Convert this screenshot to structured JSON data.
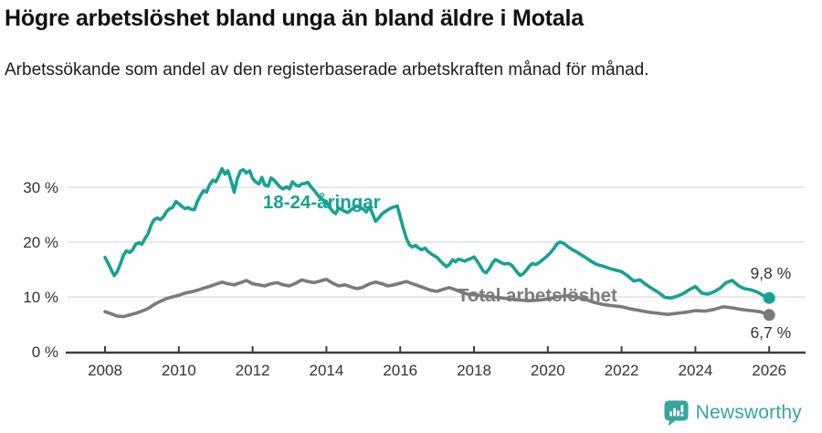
{
  "header": {
    "title": "Högre arbetslöshet bland unga än bland äldre i Motala",
    "subtitle": "Arbetssökande som andel av den registerbaserade arbetskraften månad för månad."
  },
  "colors": {
    "accent_teal": "#16a293",
    "series_gray": "#7b7b7b",
    "gridline": "#d9d9d9",
    "axis_line": "#3f3f3f",
    "axis_text": "#333333",
    "value_label_text": "#333333",
    "brand_teal": "#35a69e"
  },
  "footer": {
    "brand": "Newsworthy"
  },
  "chart_data": {
    "type": "line",
    "title": "Högre arbetslöshet bland unga än bland äldre i Motala",
    "subtitle": "Arbetssökande som andel av den registerbaserade arbetskraften månad för månad.",
    "xlabel": "",
    "ylabel": "",
    "xlim": [
      2007.9,
      2026.3
    ],
    "ylim": [
      0,
      34
    ],
    "grid": true,
    "legend_position": "inline-labels",
    "x_ticks": [
      2008,
      2010,
      2012,
      2014,
      2016,
      2018,
      2020,
      2022,
      2024,
      2026
    ],
    "x_tick_labels": [
      "2008",
      "2010",
      "2012",
      "2014",
      "2016",
      "2018",
      "2020",
      "2022",
      "2024",
      "2026"
    ],
    "y_ticks": [
      0,
      10,
      20,
      30
    ],
    "y_tick_labels": [
      "0 %",
      "10 %",
      "20 %",
      "30 %"
    ],
    "series": [
      {
        "name": "18-24-åringar",
        "color": "#16a293",
        "end_label": "9,8 %",
        "end_value": 9.8,
        "end_label_dy": -21,
        "label_at": [
          2012.28,
          26.2
        ],
        "points": [
          [
            2008.0,
            17.2
          ],
          [
            2008.08,
            16.2
          ],
          [
            2008.17,
            14.9
          ],
          [
            2008.25,
            13.9
          ],
          [
            2008.33,
            14.6
          ],
          [
            2008.42,
            16.1
          ],
          [
            2008.5,
            17.6
          ],
          [
            2008.58,
            18.4
          ],
          [
            2008.67,
            18.1
          ],
          [
            2008.75,
            18.6
          ],
          [
            2008.83,
            19.6
          ],
          [
            2008.92,
            19.9
          ],
          [
            2009.0,
            19.6
          ],
          [
            2009.08,
            20.6
          ],
          [
            2009.17,
            21.6
          ],
          [
            2009.25,
            23.1
          ],
          [
            2009.33,
            24.1
          ],
          [
            2009.42,
            24.4
          ],
          [
            2009.5,
            24.1
          ],
          [
            2009.58,
            24.6
          ],
          [
            2009.67,
            25.6
          ],
          [
            2009.75,
            26.1
          ],
          [
            2009.83,
            26.3
          ],
          [
            2009.92,
            27.4
          ],
          [
            2010.0,
            27.0
          ],
          [
            2010.08,
            26.5
          ],
          [
            2010.17,
            26.1
          ],
          [
            2010.25,
            26.3
          ],
          [
            2010.33,
            26.0
          ],
          [
            2010.42,
            25.9
          ],
          [
            2010.5,
            27.4
          ],
          [
            2010.58,
            28.4
          ],
          [
            2010.67,
            29.4
          ],
          [
            2010.75,
            29.1
          ],
          [
            2010.83,
            30.4
          ],
          [
            2010.92,
            31.3
          ],
          [
            2011.0,
            31.0
          ],
          [
            2011.08,
            32.0
          ],
          [
            2011.17,
            33.4
          ],
          [
            2011.25,
            32.4
          ],
          [
            2011.33,
            33.0
          ],
          [
            2011.42,
            31.1
          ],
          [
            2011.5,
            29.1
          ],
          [
            2011.58,
            31.4
          ],
          [
            2011.67,
            33.0
          ],
          [
            2011.75,
            33.2
          ],
          [
            2011.83,
            32.6
          ],
          [
            2011.92,
            33.0
          ],
          [
            2012.0,
            31.6
          ],
          [
            2012.08,
            31.0
          ],
          [
            2012.17,
            30.6
          ],
          [
            2012.25,
            31.8
          ],
          [
            2012.33,
            30.4
          ],
          [
            2012.42,
            30.2
          ],
          [
            2012.5,
            31.7
          ],
          [
            2012.58,
            31.3
          ],
          [
            2012.67,
            30.6
          ],
          [
            2012.75,
            30.0
          ],
          [
            2012.83,
            29.7
          ],
          [
            2012.92,
            30.1
          ],
          [
            2013.0,
            29.7
          ],
          [
            2013.08,
            31.0
          ],
          [
            2013.17,
            30.4
          ],
          [
            2013.25,
            30.2
          ],
          [
            2013.33,
            30.6
          ],
          [
            2013.42,
            30.7
          ],
          [
            2013.5,
            30.9
          ],
          [
            2013.58,
            30.1
          ],
          [
            2013.67,
            29.4
          ],
          [
            2013.75,
            28.7
          ],
          [
            2013.83,
            28.1
          ],
          [
            2013.92,
            27.6
          ],
          [
            2014.0,
            27.4
          ],
          [
            2014.08,
            26.4
          ],
          [
            2014.17,
            25.6
          ],
          [
            2014.25,
            25.2
          ],
          [
            2014.33,
            26.2
          ],
          [
            2014.42,
            25.9
          ],
          [
            2014.5,
            25.6
          ],
          [
            2014.58,
            25.4
          ],
          [
            2014.67,
            25.9
          ],
          [
            2014.75,
            26.3
          ],
          [
            2014.83,
            26.6
          ],
          [
            2014.92,
            26.3
          ],
          [
            2015.0,
            26.0
          ],
          [
            2015.08,
            25.5
          ],
          [
            2015.17,
            26.4
          ],
          [
            2015.25,
            25.2
          ],
          [
            2015.33,
            23.8
          ],
          [
            2015.42,
            24.4
          ],
          [
            2015.5,
            25.1
          ],
          [
            2015.58,
            25.5
          ],
          [
            2015.67,
            25.9
          ],
          [
            2015.75,
            26.2
          ],
          [
            2015.83,
            26.4
          ],
          [
            2015.92,
            26.6
          ],
          [
            2016.0,
            24.6
          ],
          [
            2016.08,
            22.6
          ],
          [
            2016.17,
            20.6
          ],
          [
            2016.25,
            19.5
          ],
          [
            2016.33,
            19.1
          ],
          [
            2016.42,
            19.4
          ],
          [
            2016.5,
            18.9
          ],
          [
            2016.58,
            18.6
          ],
          [
            2016.67,
            18.9
          ],
          [
            2016.75,
            18.3
          ],
          [
            2016.83,
            17.9
          ],
          [
            2016.92,
            17.5
          ],
          [
            2017.0,
            17.2
          ],
          [
            2017.08,
            16.6
          ],
          [
            2017.17,
            16.0
          ],
          [
            2017.25,
            15.5
          ],
          [
            2017.33,
            15.9
          ],
          [
            2017.42,
            16.8
          ],
          [
            2017.5,
            16.4
          ],
          [
            2017.58,
            16.9
          ],
          [
            2017.67,
            16.7
          ],
          [
            2017.75,
            16.5
          ],
          [
            2017.83,
            16.8
          ],
          [
            2017.92,
            17.0
          ],
          [
            2018.0,
            17.3
          ],
          [
            2018.08,
            16.6
          ],
          [
            2018.17,
            15.6
          ],
          [
            2018.25,
            14.7
          ],
          [
            2018.33,
            14.4
          ],
          [
            2018.42,
            15.2
          ],
          [
            2018.5,
            16.2
          ],
          [
            2018.58,
            16.8
          ],
          [
            2018.67,
            16.5
          ],
          [
            2018.75,
            16.2
          ],
          [
            2018.83,
            16.0
          ],
          [
            2018.92,
            16.1
          ],
          [
            2019.0,
            15.9
          ],
          [
            2019.08,
            15.3
          ],
          [
            2019.17,
            14.5
          ],
          [
            2019.25,
            13.9
          ],
          [
            2019.33,
            14.2
          ],
          [
            2019.42,
            14.9
          ],
          [
            2019.5,
            15.6
          ],
          [
            2019.58,
            16.1
          ],
          [
            2019.67,
            15.9
          ],
          [
            2019.75,
            16.2
          ],
          [
            2019.83,
            16.6
          ],
          [
            2019.92,
            17.1
          ],
          [
            2020.0,
            17.6
          ],
          [
            2020.08,
            18.1
          ],
          [
            2020.17,
            18.9
          ],
          [
            2020.25,
            19.7
          ],
          [
            2020.33,
            20.0
          ],
          [
            2020.42,
            19.8
          ],
          [
            2020.5,
            19.4
          ],
          [
            2020.58,
            19.0
          ],
          [
            2020.67,
            18.6
          ],
          [
            2020.75,
            18.3
          ],
          [
            2020.83,
            18.0
          ],
          [
            2020.92,
            17.6
          ],
          [
            2021.0,
            17.3
          ],
          [
            2021.17,
            16.5
          ],
          [
            2021.33,
            15.9
          ],
          [
            2021.5,
            15.6
          ],
          [
            2021.67,
            15.2
          ],
          [
            2021.83,
            14.9
          ],
          [
            2022.0,
            14.6
          ],
          [
            2022.17,
            13.8
          ],
          [
            2022.33,
            12.9
          ],
          [
            2022.5,
            13.1
          ],
          [
            2022.67,
            12.2
          ],
          [
            2022.83,
            11.5
          ],
          [
            2023.0,
            10.8
          ],
          [
            2023.17,
            9.9
          ],
          [
            2023.33,
            9.8
          ],
          [
            2023.5,
            10.1
          ],
          [
            2023.67,
            10.6
          ],
          [
            2023.83,
            11.3
          ],
          [
            2024.0,
            11.9
          ],
          [
            2024.17,
            10.7
          ],
          [
            2024.33,
            10.5
          ],
          [
            2024.5,
            10.9
          ],
          [
            2024.67,
            11.6
          ],
          [
            2024.83,
            12.6
          ],
          [
            2025.0,
            13.0
          ],
          [
            2025.17,
            12.0
          ],
          [
            2025.33,
            11.5
          ],
          [
            2025.5,
            11.3
          ],
          [
            2025.67,
            10.9
          ],
          [
            2025.83,
            10.3
          ],
          [
            2026.0,
            9.8
          ]
        ]
      },
      {
        "name": "Total arbetslöshet",
        "color": "#7b7b7b",
        "end_label": "6,7 %",
        "end_value": 6.7,
        "end_label_dy": 25,
        "label_at": [
          2017.55,
          9.2
        ],
        "points": [
          [
            2008.0,
            7.3
          ],
          [
            2008.17,
            6.9
          ],
          [
            2008.33,
            6.5
          ],
          [
            2008.5,
            6.4
          ],
          [
            2008.67,
            6.7
          ],
          [
            2008.83,
            7.0
          ],
          [
            2009.0,
            7.4
          ],
          [
            2009.17,
            7.9
          ],
          [
            2009.33,
            8.6
          ],
          [
            2009.5,
            9.2
          ],
          [
            2009.67,
            9.7
          ],
          [
            2009.83,
            10.0
          ],
          [
            2010.0,
            10.3
          ],
          [
            2010.17,
            10.7
          ],
          [
            2010.33,
            10.9
          ],
          [
            2010.5,
            11.2
          ],
          [
            2010.67,
            11.6
          ],
          [
            2010.83,
            11.9
          ],
          [
            2011.0,
            12.3
          ],
          [
            2011.17,
            12.7
          ],
          [
            2011.33,
            12.4
          ],
          [
            2011.5,
            12.2
          ],
          [
            2011.67,
            12.6
          ],
          [
            2011.83,
            13.0
          ],
          [
            2012.0,
            12.4
          ],
          [
            2012.17,
            12.2
          ],
          [
            2012.33,
            12.0
          ],
          [
            2012.5,
            12.4
          ],
          [
            2012.67,
            12.6
          ],
          [
            2012.83,
            12.2
          ],
          [
            2013.0,
            12.0
          ],
          [
            2013.17,
            12.5
          ],
          [
            2013.33,
            13.1
          ],
          [
            2013.5,
            12.8
          ],
          [
            2013.67,
            12.6
          ],
          [
            2013.83,
            12.9
          ],
          [
            2014.0,
            13.2
          ],
          [
            2014.17,
            12.5
          ],
          [
            2014.33,
            12.0
          ],
          [
            2014.5,
            12.2
          ],
          [
            2014.67,
            11.8
          ],
          [
            2014.83,
            11.5
          ],
          [
            2015.0,
            11.8
          ],
          [
            2015.17,
            12.4
          ],
          [
            2015.33,
            12.7
          ],
          [
            2015.5,
            12.4
          ],
          [
            2015.67,
            12.0
          ],
          [
            2015.83,
            12.2
          ],
          [
            2016.0,
            12.5
          ],
          [
            2016.17,
            12.8
          ],
          [
            2016.33,
            12.4
          ],
          [
            2016.5,
            12.0
          ],
          [
            2016.67,
            11.6
          ],
          [
            2016.83,
            11.2
          ],
          [
            2017.0,
            11.0
          ],
          [
            2017.17,
            11.4
          ],
          [
            2017.33,
            11.7
          ],
          [
            2017.5,
            11.3
          ],
          [
            2017.67,
            10.8
          ],
          [
            2017.83,
            10.5
          ],
          [
            2018.0,
            10.4
          ],
          [
            2018.25,
            10.2
          ],
          [
            2018.5,
            10.0
          ],
          [
            2018.75,
            9.8
          ],
          [
            2019.0,
            9.6
          ],
          [
            2019.25,
            9.4
          ],
          [
            2019.5,
            9.3
          ],
          [
            2019.75,
            9.4
          ],
          [
            2020.0,
            9.6
          ],
          [
            2020.25,
            10.0
          ],
          [
            2020.5,
            10.2
          ],
          [
            2020.75,
            10.0
          ],
          [
            2021.0,
            9.6
          ],
          [
            2021.25,
            9.0
          ],
          [
            2021.5,
            8.6
          ],
          [
            2021.75,
            8.4
          ],
          [
            2022.0,
            8.2
          ],
          [
            2022.25,
            7.8
          ],
          [
            2022.5,
            7.5
          ],
          [
            2022.75,
            7.2
          ],
          [
            2023.0,
            7.0
          ],
          [
            2023.25,
            6.8
          ],
          [
            2023.5,
            7.0
          ],
          [
            2023.75,
            7.2
          ],
          [
            2024.0,
            7.5
          ],
          [
            2024.25,
            7.4
          ],
          [
            2024.5,
            7.7
          ],
          [
            2024.75,
            8.2
          ],
          [
            2025.0,
            8.0
          ],
          [
            2025.25,
            7.7
          ],
          [
            2025.5,
            7.5
          ],
          [
            2025.75,
            7.3
          ],
          [
            2026.0,
            6.7
          ]
        ]
      }
    ]
  }
}
